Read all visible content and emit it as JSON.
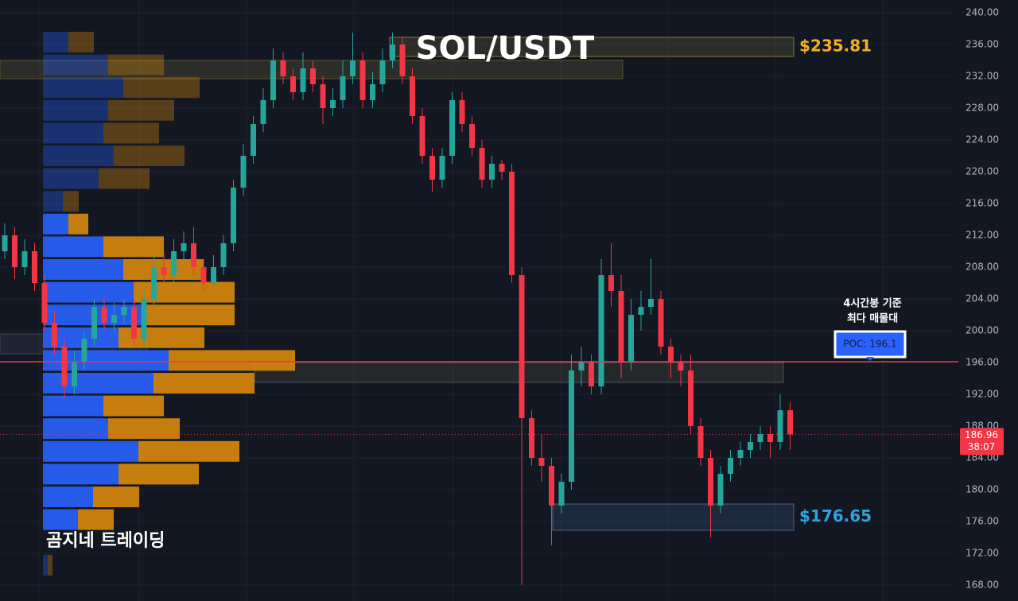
{
  "chart_data": {
    "type": "candlestick",
    "title": "SOL/USDT",
    "watermark": "곰지네 트레이딩",
    "up_color": "#26a69a",
    "down_color": "#f23645",
    "ylim": [
      166,
      241.6
    ],
    "yticks": [
      {
        "value": 240,
        "label": "240.00"
      },
      {
        "value": 236,
        "label": "236.00"
      },
      {
        "value": 232,
        "label": "232.00"
      },
      {
        "value": 228,
        "label": "228.00"
      },
      {
        "value": 224,
        "label": "224.00"
      },
      {
        "value": 220,
        "label": "220.00"
      },
      {
        "value": 216,
        "label": "216.00"
      },
      {
        "value": 212,
        "label": "212.00"
      },
      {
        "value": 208,
        "label": "208.00"
      },
      {
        "value": 204,
        "label": "204.00"
      },
      {
        "value": 200,
        "label": "200.00"
      },
      {
        "value": 196,
        "label": "196.00"
      },
      {
        "value": 192,
        "label": "192.00"
      },
      {
        "value": 188,
        "label": "188.00"
      },
      {
        "value": 184,
        "label": "184.00"
      },
      {
        "value": 180,
        "label": "180.00"
      },
      {
        "value": 176,
        "label": "176.00"
      },
      {
        "value": 172,
        "label": "172.00"
      },
      {
        "value": 168,
        "label": "168.00"
      }
    ],
    "open": [
      210,
      212,
      208,
      210,
      206,
      201,
      198,
      193,
      196,
      199,
      203,
      201,
      202,
      203,
      199,
      204,
      208,
      207,
      210,
      211,
      208,
      206,
      208,
      211,
      218,
      222,
      226,
      229,
      234,
      232,
      230,
      233,
      231,
      228,
      229,
      232,
      234,
      229,
      231,
      234,
      236,
      232,
      227,
      222,
      219,
      222,
      229,
      226,
      223,
      219,
      221,
      220,
      207,
      189,
      184,
      183,
      178,
      181,
      195,
      196,
      193,
      207,
      205,
      196,
      202,
      203,
      204,
      198,
      196,
      195,
      188,
      184,
      178,
      182,
      184,
      185,
      186,
      187,
      186,
      190
    ],
    "high": [
      213.5,
      213,
      211.5,
      211,
      207,
      202.5,
      199,
      197.5,
      200,
      204,
      204.5,
      203.5,
      204,
      204,
      205,
      209.5,
      210,
      211.5,
      212.5,
      213,
      209,
      209.5,
      212,
      219,
      223.5,
      227,
      230.5,
      235.5,
      235,
      233,
      235,
      234,
      232,
      230.5,
      234,
      237.5,
      235,
      232.5,
      235.5,
      237.5,
      237,
      233,
      228,
      223,
      223,
      230,
      230,
      227,
      224,
      222,
      221.5,
      221,
      208,
      190,
      187,
      184,
      182,
      197,
      198,
      197,
      209,
      211,
      207,
      204,
      205,
      209,
      205,
      199,
      197,
      197,
      189,
      185,
      183,
      185,
      186,
      187,
      188,
      188,
      192,
      191
    ],
    "low": [
      209,
      206.5,
      207,
      205,
      200,
      197,
      191.5,
      192,
      195,
      198,
      200,
      200,
      201,
      198,
      198,
      203,
      206,
      206,
      209,
      207,
      205,
      205,
      207,
      210,
      217,
      221,
      225,
      228,
      231,
      229,
      229,
      230,
      226,
      227,
      228,
      231,
      228,
      228,
      230,
      233,
      231,
      226,
      221,
      217.5,
      218,
      221,
      225,
      222,
      218,
      218,
      219,
      206,
      168,
      183,
      181,
      173,
      177,
      180,
      193,
      192,
      192,
      203,
      194,
      195,
      200,
      202,
      197,
      194,
      193,
      187,
      183,
      174,
      177,
      181,
      183,
      184,
      185,
      184,
      185,
      185
    ],
    "close": [
      212,
      208,
      210,
      206,
      201,
      198,
      193,
      196,
      199,
      203,
      201,
      202,
      203,
      199,
      204,
      208,
      207,
      210,
      211,
      208,
      206,
      208,
      211,
      218,
      222,
      226,
      229,
      234,
      232,
      230,
      233,
      231,
      228,
      229,
      232,
      234,
      229,
      231,
      234,
      236,
      232,
      227,
      222,
      219,
      222,
      229,
      226,
      223,
      219,
      221,
      220,
      207,
      189,
      184,
      183,
      178,
      181,
      195,
      196,
      193,
      207,
      205,
      196,
      202,
      203,
      204,
      198,
      196,
      195,
      188,
      184,
      178,
      182,
      184,
      185,
      186,
      187,
      186,
      190,
      186.96
    ],
    "last_price": 186.96,
    "countdown": "38:07",
    "profile": {
      "buy_color": "#2962ff",
      "sell_color": "#d98a0b",
      "buy": [
        32,
        82,
        101,
        82,
        76,
        89,
        70,
        25,
        32,
        76,
        101,
        114,
        126,
        95,
        158,
        139,
        76,
        82,
        120,
        95,
        63,
        44,
        0,
        6
      ],
      "sell": [
        32,
        70,
        96,
        83,
        70,
        89,
        64,
        20,
        25,
        76,
        101,
        127,
        115,
        108,
        159,
        127,
        76,
        90,
        127,
        101,
        58,
        45,
        0,
        6
      ]
    },
    "zones": [
      {
        "value": 235.81,
        "label": "$235.81",
        "range": [
          234.5,
          236.9
        ],
        "color": "#f2b01e"
      },
      {
        "value": 176.65,
        "label": "$176.65",
        "range": [
          174.9,
          178.2
        ],
        "color": "#2ea3e0"
      }
    ],
    "poc": {
      "value": 196.1,
      "label": "POC: 196.1",
      "note": [
        "4시간봉 기준",
        "최다 매물대"
      ]
    }
  }
}
